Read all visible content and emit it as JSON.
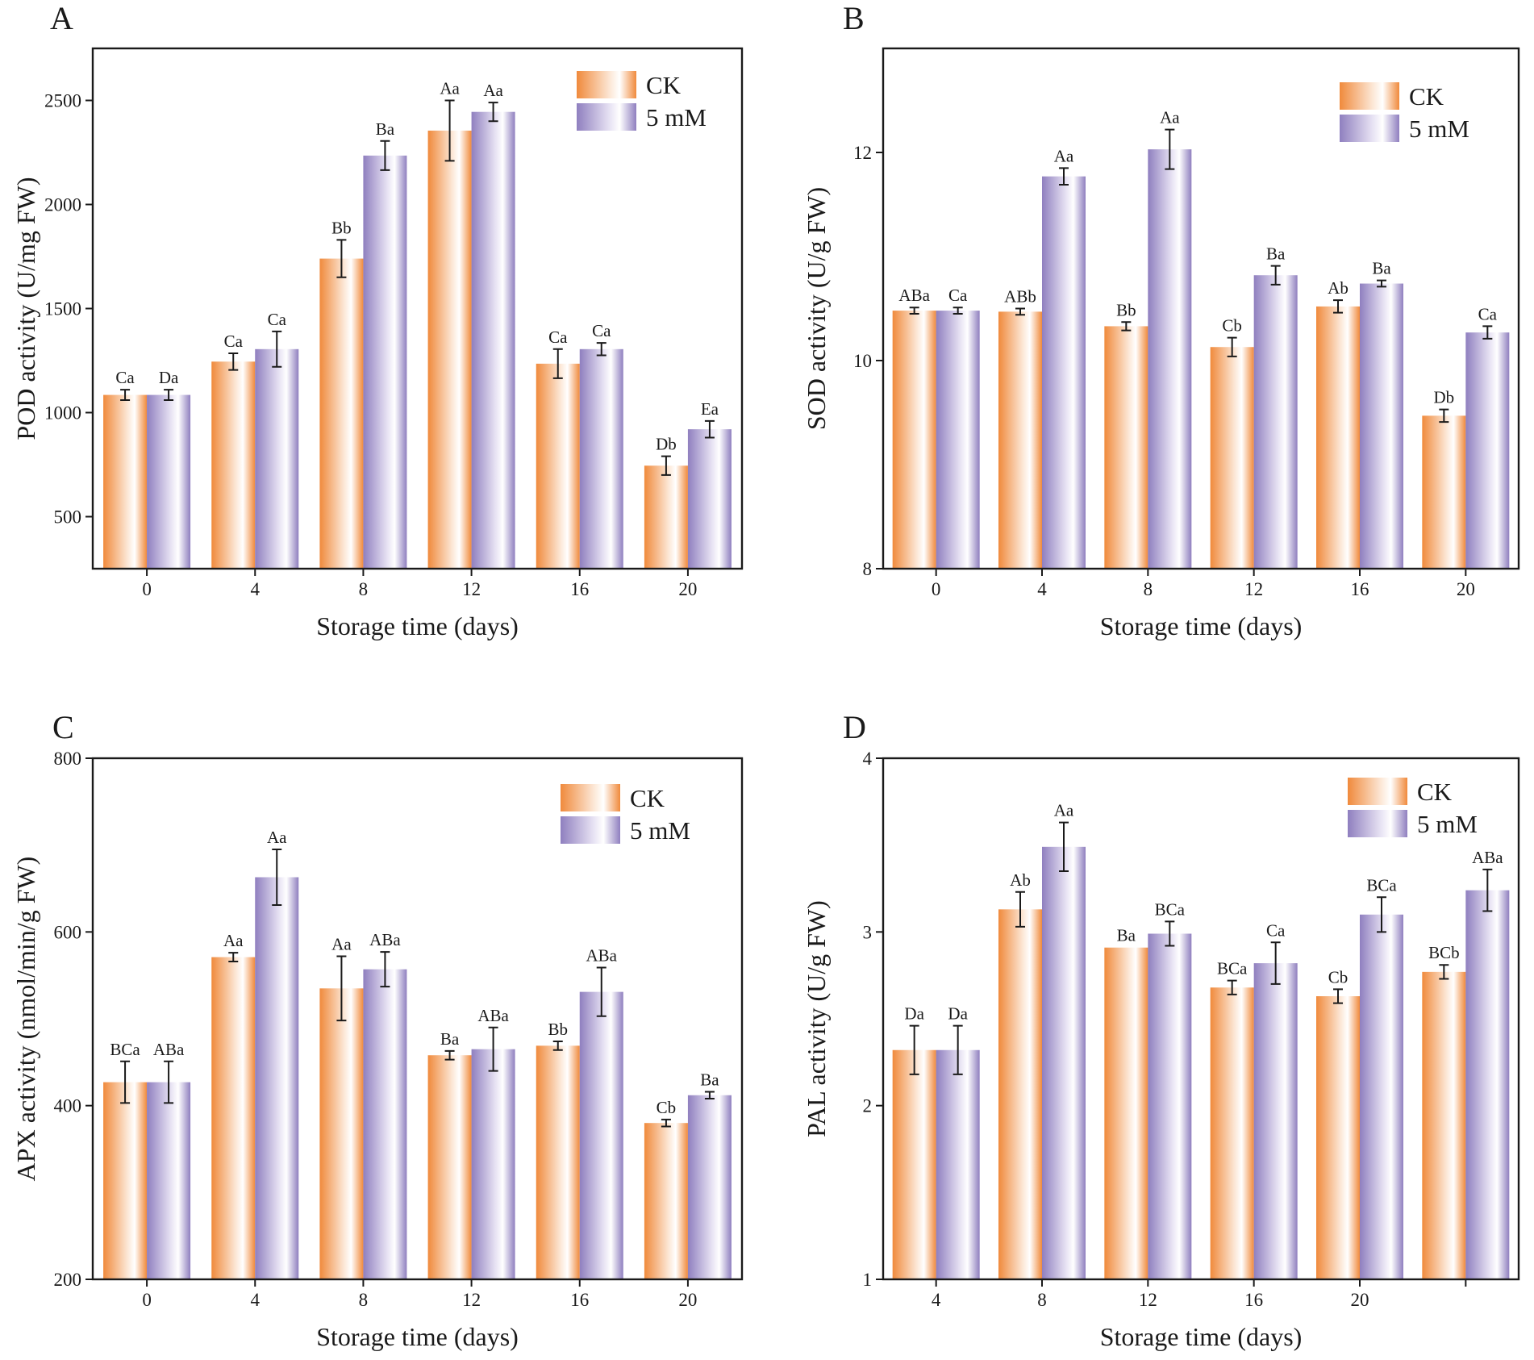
{
  "colors": {
    "ck": "#f08a3c",
    "mm5": "#8f7fbf",
    "axis": "#1a1a1a",
    "background": "#ffffff"
  },
  "legend": {
    "ck_label": "CK",
    "mm5_label": "5 mM"
  },
  "chart_data": [
    {
      "type": "bar",
      "panel": "A",
      "categories": [
        "0",
        "4",
        "8",
        "12",
        "16",
        "20"
      ],
      "xlabel": "Storage time (days)",
      "ylabel": "POD activity (U/mg FW)",
      "ylim": [
        250,
        2750
      ],
      "yticks": [
        500,
        1000,
        1500,
        2000,
        2500
      ],
      "legend_position": "top-right",
      "series": [
        {
          "name": "CK",
          "values": [
            1085,
            1245,
            1740,
            2355,
            1235,
            745
          ],
          "errors": [
            25,
            40,
            90,
            145,
            70,
            45
          ],
          "labels": [
            "Ca",
            "Ca",
            "Bb",
            "Aa",
            "Ca",
            "Db"
          ]
        },
        {
          "name": "5 mM",
          "values": [
            1085,
            1305,
            2235,
            2445,
            1305,
            920
          ],
          "errors": [
            25,
            85,
            70,
            45,
            30,
            40
          ],
          "labels": [
            "Da",
            "Ca",
            "Ba",
            "Aa",
            "Ca",
            "Ea"
          ]
        }
      ]
    },
    {
      "type": "bar",
      "panel": "B",
      "categories": [
        "0",
        "4",
        "8",
        "12",
        "16",
        "20"
      ],
      "xlabel": "Storage time (days)",
      "ylabel": "SOD activity (U/g FW)",
      "ylim": [
        8,
        13
      ],
      "yticks": [
        8,
        10,
        12
      ],
      "legend_position": "top-right",
      "series": [
        {
          "name": "CK",
          "values": [
            10.48,
            10.47,
            10.33,
            10.13,
            10.52,
            9.47
          ],
          "errors": [
            0.03,
            0.03,
            0.04,
            0.09,
            0.06,
            0.06
          ],
          "labels": [
            "ABa",
            "ABb",
            "Bb",
            "Cb",
            "Ab",
            "Db"
          ]
        },
        {
          "name": "5 mM",
          "values": [
            10.48,
            11.77,
            12.03,
            10.82,
            10.74,
            10.27
          ],
          "errors": [
            0.03,
            0.08,
            0.19,
            0.09,
            0.03,
            0.06
          ],
          "labels": [
            "Ca",
            "Aa",
            "Aa",
            "Ba",
            "Ba",
            "Ca"
          ]
        }
      ]
    },
    {
      "type": "bar",
      "panel": "C",
      "categories": [
        "0",
        "4",
        "8",
        "12",
        "16",
        "20"
      ],
      "xlabel": "Storage time (days)",
      "ylabel": "APX activity (nmol/min/g FW)",
      "ylim": [
        200,
        800
      ],
      "yticks": [
        200,
        400,
        600,
        800
      ],
      "legend_position": "top-right",
      "series": [
        {
          "name": "CK",
          "values": [
            427,
            571,
            535,
            458,
            469,
            380
          ],
          "errors": [
            24,
            5,
            37,
            5,
            5,
            4
          ],
          "labels": [
            "BCa",
            "Aa",
            "Aa",
            "Ba",
            "Bb",
            "Cb"
          ]
        },
        {
          "name": "5 mM",
          "values": [
            427,
            663,
            557,
            465,
            531,
            412
          ],
          "errors": [
            24,
            32,
            20,
            25,
            28,
            4
          ],
          "labels": [
            "ABa",
            "Aa",
            "ABa",
            "ABa",
            "ABa",
            "Ba"
          ]
        }
      ]
    },
    {
      "type": "bar",
      "panel": "D",
      "categories": [
        "4",
        "8",
        "12",
        "16",
        "20",
        ""
      ],
      "xlabel": "Storage time (days)",
      "ylabel": "PAL activity (U/g FW)",
      "ylim": [
        1,
        4
      ],
      "yticks": [
        1,
        2,
        3,
        4
      ],
      "legend_position": "top-right",
      "series": [
        {
          "name": "CK",
          "values": [
            2.32,
            3.13,
            2.91,
            2.68,
            2.63,
            2.77
          ],
          "errors": [
            0.14,
            0.1,
            0.0,
            0.04,
            0.04,
            0.04
          ],
          "labels": [
            "Da",
            "Ab",
            "Ba",
            "BCa",
            "Cb",
            "BCb"
          ]
        },
        {
          "name": "5 mM",
          "values": [
            2.32,
            3.49,
            2.99,
            2.82,
            3.1,
            3.24
          ],
          "errors": [
            0.14,
            0.14,
            0.07,
            0.12,
            0.1,
            0.12
          ],
          "labels": [
            "Da",
            "Aa",
            "BCa",
            "Ca",
            "BCa",
            "ABa"
          ]
        }
      ]
    }
  ]
}
